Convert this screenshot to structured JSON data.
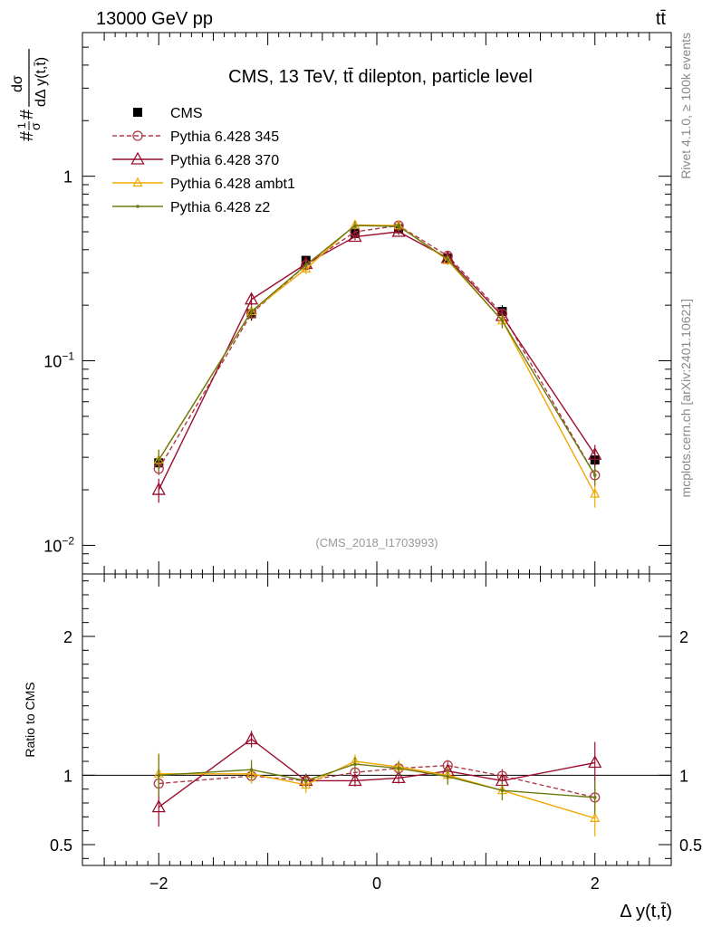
{
  "header": {
    "left": "13000 GeV pp",
    "right": "tt̄"
  },
  "side_labels": {
    "rivet": "Rivet 4.1.0, ≥ 100k events",
    "mcplots": "mcplots.cern.ch [arXiv:2401.10621]"
  },
  "chart_data": [
    {
      "type": "line",
      "panel": "main",
      "title": "CMS, 13 TeV, tt̄ dilepton, particle level",
      "watermark": "(CMS_2018_I1703993)",
      "ylabel": "#1/σ# dσ / dΔ y(t,t̄)",
      "yscale": "log",
      "xlim": [
        -2.7,
        2.7
      ],
      "ylim": [
        0.007,
        6.0
      ],
      "yticks": [
        {
          "value": 0.01,
          "base": "10",
          "exp": "−2"
        },
        {
          "value": 0.1,
          "base": "10",
          "exp": "−1"
        },
        {
          "value": 1,
          "base": "1",
          "exp": ""
        }
      ],
      "legend_position": "top-left",
      "x": [
        -2.0,
        -1.15,
        -0.65,
        -0.2,
        0.2,
        0.65,
        1.15,
        2.0
      ],
      "series": [
        {
          "name": "CMS",
          "color": "#000000",
          "style": "data",
          "values": [
            0.028,
            0.18,
            0.35,
            0.49,
            0.52,
            0.36,
            0.185,
            0.029
          ],
          "errors": [
            0.003,
            0.015,
            0.02,
            0.025,
            0.025,
            0.02,
            0.015,
            0.004
          ]
        },
        {
          "name": "Pythia 6.428 345",
          "color": "#b03a48",
          "style": "dashed-circle",
          "values": [
            0.026,
            0.18,
            0.33,
            0.5,
            0.54,
            0.37,
            0.18,
            0.024
          ],
          "errors": [
            0.002,
            0.01,
            0.015,
            0.02,
            0.02,
            0.015,
            0.01,
            0.002
          ]
        },
        {
          "name": "Pythia 6.428 370",
          "color": "#9b0d2e",
          "style": "triangle",
          "values": [
            0.02,
            0.215,
            0.335,
            0.47,
            0.5,
            0.36,
            0.175,
            0.031
          ],
          "errors": [
            0.003,
            0.015,
            0.02,
            0.02,
            0.02,
            0.015,
            0.012,
            0.004
          ]
        },
        {
          "name": "Pythia 6.428 ambt1",
          "color": "#f0a800",
          "style": "small-triangle",
          "values": [
            0.029,
            0.185,
            0.315,
            0.545,
            0.54,
            0.35,
            0.165,
            0.019
          ],
          "errors": [
            0.004,
            0.015,
            0.02,
            0.03,
            0.03,
            0.02,
            0.015,
            0.003
          ]
        },
        {
          "name": "Pythia 6.428 z2",
          "color": "#6b7a10",
          "style": "dot",
          "values": [
            0.029,
            0.185,
            0.33,
            0.54,
            0.535,
            0.355,
            0.165,
            0.024
          ],
          "errors": [
            0.004,
            0.015,
            0.02,
            0.03,
            0.03,
            0.02,
            0.015,
            0.003
          ]
        }
      ]
    },
    {
      "type": "line",
      "panel": "ratio",
      "ylabel": "Ratio to CMS",
      "xlabel": "Δ y(t,t̄)",
      "xlim": [
        -2.7,
        2.7
      ],
      "ylim": [
        0.35,
        2.45
      ],
      "xticks": [
        {
          "value": -2,
          "label": "−2"
        },
        {
          "value": 0,
          "label": "0"
        },
        {
          "value": 2,
          "label": "2"
        }
      ],
      "yticks": [
        {
          "value": 0.5,
          "label": "0.5"
        },
        {
          "value": 1,
          "label": "1"
        },
        {
          "value": 2,
          "label": "2"
        }
      ],
      "x": [
        -2.0,
        -1.15,
        -0.65,
        -0.2,
        0.2,
        0.65,
        1.15,
        2.0
      ],
      "series": [
        {
          "name": "Pythia 6.428 345",
          "color": "#b03a48",
          "style": "dashed-circle",
          "values": [
            0.94,
            0.995,
            0.96,
            1.02,
            1.05,
            1.07,
            0.995,
            0.84
          ],
          "errors": [
            0.08,
            0.04,
            0.04,
            0.03,
            0.03,
            0.04,
            0.05,
            0.1
          ]
        },
        {
          "name": "Pythia 6.428 370",
          "color": "#9b0d2e",
          "style": "triangle",
          "values": [
            0.77,
            1.26,
            0.96,
            0.96,
            0.98,
            1.03,
            0.96,
            1.09
          ],
          "errors": [
            0.14,
            0.06,
            0.04,
            0.04,
            0.04,
            0.04,
            0.05,
            0.15
          ]
        },
        {
          "name": "Pythia 6.428 ambt1",
          "color": "#f0a800",
          "style": "small-triangle",
          "values": [
            1.01,
            1.01,
            0.93,
            1.1,
            1.06,
            1.0,
            0.89,
            0.69
          ],
          "errors": [
            0.15,
            0.07,
            0.06,
            0.05,
            0.05,
            0.06,
            0.07,
            0.13
          ]
        },
        {
          "name": "Pythia 6.428 z2",
          "color": "#6b7a10",
          "style": "dot",
          "values": [
            1.0,
            1.04,
            0.96,
            1.08,
            1.05,
            0.99,
            0.89,
            0.84
          ],
          "errors": [
            0.15,
            0.07,
            0.05,
            0.05,
            0.05,
            0.06,
            0.07,
            0.12
          ]
        }
      ]
    }
  ]
}
